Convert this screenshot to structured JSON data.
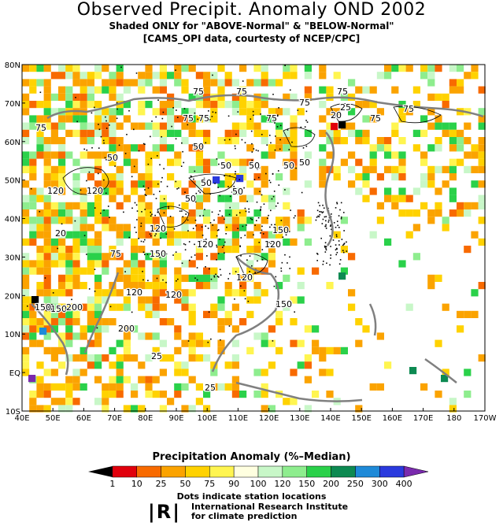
{
  "title": "Observed Precipit. Anomaly OND 2002",
  "subtitle1": "Shaded ONLY for \"ABOVE-Normal\" & \"BELOW-Normal\"",
  "subtitle2": "[CAMS_OPI data, courtesty of NCEP/CPC]",
  "map": {
    "lat_ticks": [
      "80N",
      "70N",
      "60N",
      "50N",
      "40N",
      "30N",
      "20N",
      "10N",
      "EQ",
      "10S"
    ],
    "lon_ticks": [
      "40E",
      "50E",
      "60E",
      "70E",
      "80E",
      "90E",
      "100E",
      "110E",
      "120E",
      "130E",
      "140E",
      "150E",
      "160E",
      "170E",
      "180",
      "170W"
    ],
    "contour_labels": [
      "75",
      "75",
      "75",
      "75",
      "75",
      "75",
      "75",
      "75",
      "75",
      "75",
      "50",
      "50",
      "50",
      "50",
      "50",
      "50",
      "50",
      "50",
      "50",
      "120",
      "120",
      "120",
      "120",
      "120",
      "120",
      "120",
      "120",
      "150",
      "150",
      "150",
      "150",
      "200",
      "200",
      "25",
      "25",
      "25",
      "20",
      "20",
      "75",
      "150"
    ]
  },
  "legend": {
    "title": "Precipitation Anomaly (%–Median)",
    "labels": [
      "1",
      "10",
      "25",
      "50",
      "75",
      "90",
      "100",
      "120",
      "150",
      "200",
      "250",
      "300",
      "400"
    ],
    "colors": [
      "#000000",
      "#e1000c",
      "#f86a00",
      "#fba300",
      "#ffd200",
      "#fff550",
      "#ffffe0",
      "#c8f7c8",
      "#8eed8e",
      "#2ad14a",
      "#0d8a52",
      "#1e8ad8",
      "#2a3ade",
      "#7a2aae"
    ]
  },
  "dots_note": "Dots indicate station locations",
  "iri_logo": "|R|",
  "iri_line1": "International Research Institute",
  "iri_line2": "for climate prediction"
}
